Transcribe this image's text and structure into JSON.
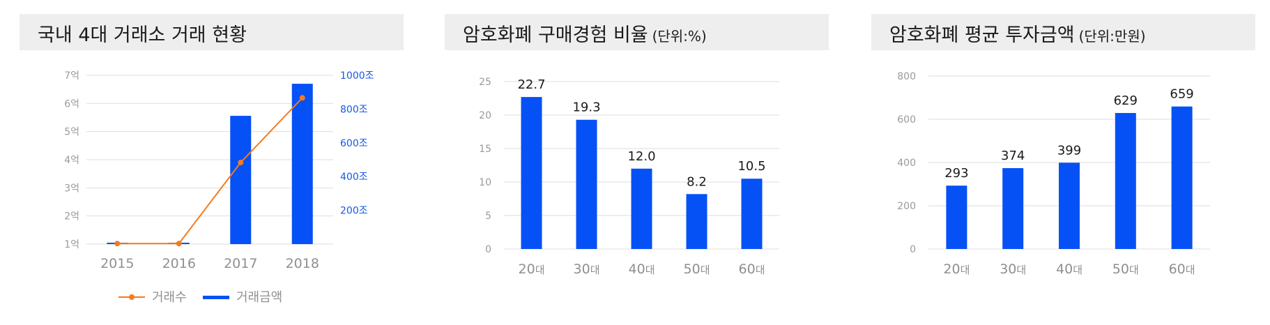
{
  "panels": [
    {
      "title": "국내 4대 거래소 거래 현황",
      "unit": ""
    },
    {
      "title": "암호화폐 구매경험 비율",
      "unit": "(단위:%)"
    },
    {
      "title": "암호화폐 평균 투자금액",
      "unit": "(단위:만원)"
    }
  ],
  "colors": {
    "bar": "#0651f5",
    "line": "#f57a1f",
    "right_axis": "#1558e8",
    "header_bg": "#eeeeee"
  },
  "chart_data": [
    {
      "type": "bar",
      "title": "국내 4대 거래소 거래 현황",
      "categories": [
        "2015",
        "2016",
        "2017",
        "2018"
      ],
      "left_axis": {
        "ylim": [
          1,
          7
        ],
        "ticks": [
          1,
          2,
          3,
          4,
          5,
          6,
          7
        ],
        "tick_suffix": "억"
      },
      "right_axis": {
        "ylim": [
          0,
          1000
        ],
        "ticks": [
          200,
          400,
          600,
          800,
          1000
        ],
        "tick_suffix": "조"
      },
      "series": [
        {
          "name": "거래수",
          "type": "line",
          "axis": "left",
          "values": [
            1.02,
            1.02,
            3.9,
            6.2
          ]
        },
        {
          "name": "거래금액",
          "type": "bar",
          "axis": "right",
          "values": [
            5,
            5,
            760,
            950
          ]
        }
      ],
      "legend": "bottom",
      "grid": true
    },
    {
      "type": "bar",
      "title": "암호화폐 구매경험 비율",
      "unit": "(단위:%)",
      "categories": [
        "20",
        "30",
        "40",
        "50",
        "60"
      ],
      "category_suffix": "대",
      "values": [
        22.7,
        19.3,
        12.0,
        8.2,
        10.5
      ],
      "data_labels": [
        "22.7",
        "19.3",
        "12.0",
        "8.2",
        "10.5"
      ],
      "ylim": [
        0,
        25
      ],
      "yticks": [
        0,
        5,
        10,
        15,
        20,
        25
      ],
      "grid": true
    },
    {
      "type": "bar",
      "title": "암호화폐 평균 투자금액",
      "unit": "(단위:만원)",
      "categories": [
        "20",
        "30",
        "40",
        "50",
        "60"
      ],
      "category_suffix": "대",
      "values": [
        293,
        374,
        399,
        629,
        659
      ],
      "data_labels": [
        "293",
        "374",
        "399",
        "629",
        "659"
      ],
      "ylim": [
        0,
        800
      ],
      "yticks": [
        0,
        200,
        400,
        600,
        800
      ],
      "grid": true
    }
  ]
}
